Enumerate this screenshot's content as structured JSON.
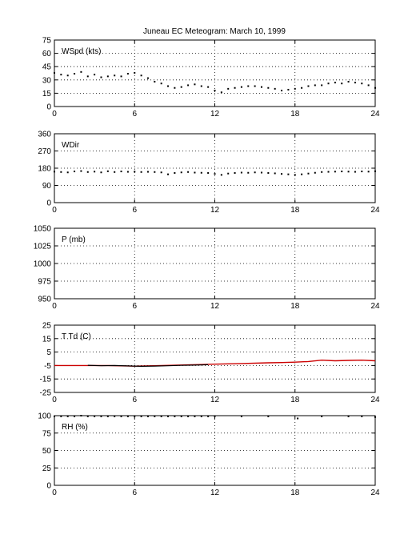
{
  "title": "Juneau EC Meteogram:      March 10, 1999",
  "chart_data": [
    {
      "type": "scatter",
      "label": "WSpd (kts)",
      "xlim": [
        0,
        24
      ],
      "ylim": [
        0,
        75
      ],
      "xticks": [
        0,
        6,
        12,
        18,
        24
      ],
      "yticks": [
        0,
        15,
        30,
        45,
        60,
        75
      ],
      "grid": true,
      "series": [
        {
          "color": "#000000",
          "x": [
            0,
            0.5,
            1,
            1.5,
            2,
            2.5,
            3,
            3.5,
            4,
            4.5,
            5,
            5.5,
            6,
            6.5,
            7,
            7.5,
            8,
            8.5,
            9,
            9.5,
            10,
            10.5,
            11,
            11.5,
            12,
            12.5,
            13,
            13.5,
            14,
            14.5,
            15,
            15.5,
            16,
            16.5,
            17,
            17.5,
            18,
            18.5,
            19,
            19.5,
            20,
            20.5,
            21,
            21.5,
            22,
            22.5,
            23,
            23.5,
            24
          ],
          "values": [
            38,
            36,
            35,
            37,
            39,
            34,
            36,
            33,
            34,
            35,
            34,
            37,
            38,
            35,
            32,
            28,
            26,
            23,
            21,
            22,
            24,
            25,
            23,
            22,
            18,
            16,
            20,
            21,
            22,
            23,
            23,
            22,
            21,
            20,
            18,
            19,
            20,
            21,
            23,
            24,
            24,
            26,
            27,
            26,
            28,
            27,
            26,
            24,
            21
          ]
        }
      ]
    },
    {
      "type": "scatter",
      "label": "WDir",
      "xlim": [
        0,
        24
      ],
      "ylim": [
        0,
        360
      ],
      "xticks": [
        0,
        6,
        12,
        18,
        24
      ],
      "yticks": [
        0,
        90,
        180,
        270,
        360
      ],
      "grid": true,
      "series": [
        {
          "color": "#000000",
          "x": [
            0,
            0.5,
            1,
            1.5,
            2,
            2.5,
            3,
            3.5,
            4,
            4.5,
            5,
            5.5,
            6,
            6.5,
            7,
            7.5,
            8,
            8.5,
            9,
            9.5,
            10,
            10.5,
            11,
            11.5,
            12,
            12.5,
            13,
            13.5,
            14,
            14.5,
            15,
            15.5,
            16,
            16.5,
            17,
            17.5,
            18,
            18.5,
            19,
            19.5,
            20,
            20.5,
            21,
            21.5,
            22,
            22.5,
            23,
            23.5,
            24
          ],
          "values": [
            162,
            160,
            158,
            163,
            165,
            160,
            162,
            158,
            164,
            160,
            163,
            161,
            162,
            160,
            161,
            160,
            158,
            148,
            155,
            158,
            160,
            157,
            156,
            155,
            150,
            145,
            152,
            155,
            157,
            156,
            158,
            157,
            155,
            153,
            150,
            148,
            145,
            148,
            152,
            156,
            160,
            161,
            162,
            163,
            162,
            161,
            163,
            162,
            164
          ]
        }
      ]
    },
    {
      "type": "scatter",
      "label": "P (mb)",
      "xlim": [
        0,
        24
      ],
      "ylim": [
        950,
        1050
      ],
      "xticks": [
        0,
        6,
        12,
        18,
        24
      ],
      "yticks": [
        950,
        975,
        1000,
        1025,
        1050
      ],
      "grid": true,
      "series": []
    },
    {
      "type": "line",
      "label": "T Td (C)",
      "xlim": [
        0,
        24
      ],
      "ylim": [
        -25,
        25
      ],
      "xticks": [
        0,
        6,
        12,
        18,
        24
      ],
      "yticks": [
        -25,
        -15,
        -5,
        5,
        15,
        25
      ],
      "grid": true,
      "series": [
        {
          "color": "#cc0000",
          "x": [
            0,
            2,
            4,
            6,
            8,
            10,
            12,
            14,
            16,
            17,
            18,
            19,
            20,
            21,
            22,
            23,
            24
          ],
          "values": [
            -5,
            -5,
            -5,
            -5.5,
            -5,
            -4.5,
            -4,
            -3.5,
            -3,
            -2.8,
            -2.5,
            -2,
            -1,
            -1.5,
            -1.2,
            -1,
            -1.5
          ]
        },
        {
          "color": "#000000",
          "x": [
            2.5,
            3.5,
            4.5,
            5.5,
            6.5,
            7.5,
            8.5,
            9.5,
            10.5,
            11.5
          ],
          "values": [
            -4.8,
            -5.2,
            -5,
            -5.3,
            -5.6,
            -5.4,
            -5.2,
            -4.9,
            -4.7,
            -4.4
          ]
        }
      ]
    },
    {
      "type": "scatter",
      "label": "RH (%)",
      "xlim": [
        0,
        24
      ],
      "ylim": [
        0,
        100
      ],
      "xticks": [
        0,
        6,
        12,
        18,
        24
      ],
      "yticks": [
        0,
        25,
        50,
        75,
        100
      ],
      "grid": true,
      "series": [
        {
          "color": "#000000",
          "x": [
            0,
            0.5,
            1,
            1.5,
            2,
            2.5,
            3,
            3.5,
            4,
            4.5,
            5,
            5.5,
            6,
            6.5,
            7,
            7.5,
            8,
            8.5,
            9,
            9.5,
            10,
            10.5,
            11,
            11.5,
            12,
            14,
            16,
            18.2,
            20,
            22,
            23,
            24
          ],
          "values": [
            99,
            99,
            99,
            99,
            100,
            99,
            99,
            99,
            99,
            99,
            99,
            99,
            99,
            99,
            99,
            99,
            99,
            99,
            99,
            99,
            99,
            99,
            99,
            99,
            99,
            99,
            99,
            96,
            99,
            99,
            99,
            98
          ]
        }
      ]
    }
  ]
}
